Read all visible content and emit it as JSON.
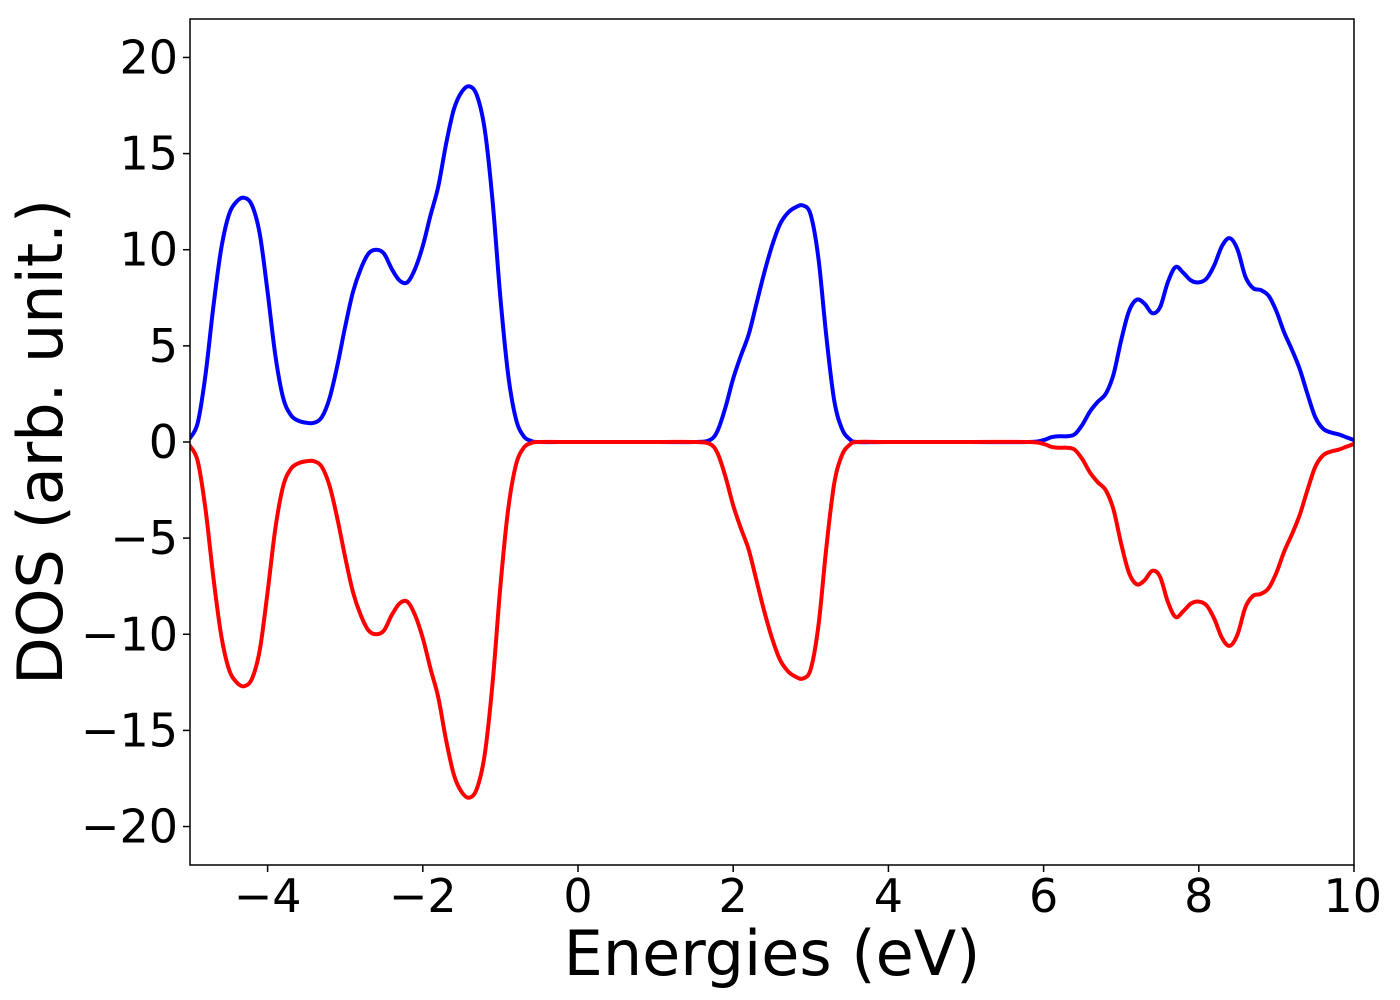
{
  "chart_data": {
    "type": "line",
    "title": "",
    "xlabel": "Energies (eV)",
    "ylabel": "DOS (arb. unit.)",
    "xlim": [
      -5,
      10
    ],
    "ylim": [
      -22,
      22
    ],
    "grid": false,
    "legend": "none",
    "x_ticks": [
      {
        "value": -4,
        "label": "−4"
      },
      {
        "value": -2,
        "label": "−2"
      },
      {
        "value": 0,
        "label": "0"
      },
      {
        "value": 2,
        "label": "2"
      },
      {
        "value": 4,
        "label": "4"
      },
      {
        "value": 6,
        "label": "6"
      },
      {
        "value": 8,
        "label": "8"
      },
      {
        "value": 10,
        "label": "10"
      }
    ],
    "y_ticks": [
      {
        "value": 20,
        "label": "20"
      },
      {
        "value": 15,
        "label": "15"
      },
      {
        "value": 10,
        "label": "10"
      },
      {
        "value": 5,
        "label": "5"
      },
      {
        "value": 0,
        "label": "0"
      },
      {
        "value": -5,
        "label": "−5"
      },
      {
        "value": -10,
        "label": "−10"
      },
      {
        "value": -15,
        "label": "−15"
      },
      {
        "value": -20,
        "label": "−20"
      }
    ],
    "series": [
      {
        "color": "#0000ff",
        "points": [
          [
            -5.0,
            0.2
          ],
          [
            -4.9,
            1.0
          ],
          [
            -4.8,
            3.5
          ],
          [
            -4.7,
            7.0
          ],
          [
            -4.6,
            10.0
          ],
          [
            -4.5,
            11.8
          ],
          [
            -4.4,
            12.5
          ],
          [
            -4.3,
            12.7
          ],
          [
            -4.2,
            12.3
          ],
          [
            -4.1,
            10.8
          ],
          [
            -4.0,
            7.8
          ],
          [
            -3.9,
            4.5
          ],
          [
            -3.8,
            2.3
          ],
          [
            -3.7,
            1.4
          ],
          [
            -3.6,
            1.1
          ],
          [
            -3.5,
            1.0
          ],
          [
            -3.4,
            1.0
          ],
          [
            -3.3,
            1.3
          ],
          [
            -3.2,
            2.3
          ],
          [
            -3.1,
            4.0
          ],
          [
            -3.0,
            6.0
          ],
          [
            -2.9,
            7.8
          ],
          [
            -2.8,
            9.0
          ],
          [
            -2.7,
            9.8
          ],
          [
            -2.6,
            10.0
          ],
          [
            -2.5,
            9.8
          ],
          [
            -2.4,
            9.0
          ],
          [
            -2.3,
            8.4
          ],
          [
            -2.2,
            8.3
          ],
          [
            -2.1,
            9.0
          ],
          [
            -2.0,
            10.2
          ],
          [
            -1.9,
            11.8
          ],
          [
            -1.8,
            13.3
          ],
          [
            -1.7,
            15.5
          ],
          [
            -1.6,
            17.3
          ],
          [
            -1.5,
            18.2
          ],
          [
            -1.4,
            18.5
          ],
          [
            -1.3,
            18.0
          ],
          [
            -1.2,
            16.2
          ],
          [
            -1.1,
            12.5
          ],
          [
            -1.0,
            7.5
          ],
          [
            -0.9,
            3.5
          ],
          [
            -0.8,
            1.2
          ],
          [
            -0.7,
            0.3
          ],
          [
            -0.6,
            0.05
          ],
          [
            -0.5,
            0.0
          ],
          [
            0.0,
            0.0
          ],
          [
            1.0,
            0.0
          ],
          [
            1.5,
            0.0
          ],
          [
            1.7,
            0.1
          ],
          [
            1.8,
            0.6
          ],
          [
            1.9,
            1.8
          ],
          [
            2.0,
            3.3
          ],
          [
            2.1,
            4.5
          ],
          [
            2.2,
            5.6
          ],
          [
            2.3,
            7.2
          ],
          [
            2.4,
            8.8
          ],
          [
            2.5,
            10.2
          ],
          [
            2.6,
            11.3
          ],
          [
            2.7,
            11.9
          ],
          [
            2.8,
            12.2
          ],
          [
            2.9,
            12.3
          ],
          [
            3.0,
            11.8
          ],
          [
            3.1,
            9.5
          ],
          [
            3.2,
            5.5
          ],
          [
            3.3,
            2.2
          ],
          [
            3.4,
            0.7
          ],
          [
            3.5,
            0.15
          ],
          [
            3.6,
            0.0
          ],
          [
            4.0,
            0.0
          ],
          [
            5.0,
            0.0
          ],
          [
            5.8,
            0.0
          ],
          [
            6.0,
            0.1
          ],
          [
            6.1,
            0.25
          ],
          [
            6.2,
            0.3
          ],
          [
            6.3,
            0.3
          ],
          [
            6.4,
            0.4
          ],
          [
            6.5,
            0.9
          ],
          [
            6.6,
            1.6
          ],
          [
            6.7,
            2.1
          ],
          [
            6.8,
            2.5
          ],
          [
            6.9,
            3.5
          ],
          [
            7.0,
            5.3
          ],
          [
            7.1,
            6.8
          ],
          [
            7.2,
            7.4
          ],
          [
            7.3,
            7.2
          ],
          [
            7.4,
            6.7
          ],
          [
            7.5,
            7.0
          ],
          [
            7.6,
            8.3
          ],
          [
            7.7,
            9.1
          ],
          [
            7.8,
            8.8
          ],
          [
            7.9,
            8.4
          ],
          [
            8.0,
            8.3
          ],
          [
            8.1,
            8.5
          ],
          [
            8.2,
            9.2
          ],
          [
            8.3,
            10.2
          ],
          [
            8.4,
            10.6
          ],
          [
            8.5,
            10.0
          ],
          [
            8.6,
            8.6
          ],
          [
            8.7,
            8.0
          ],
          [
            8.8,
            7.9
          ],
          [
            8.9,
            7.6
          ],
          [
            9.0,
            6.8
          ],
          [
            9.1,
            5.7
          ],
          [
            9.2,
            4.8
          ],
          [
            9.3,
            3.8
          ],
          [
            9.4,
            2.5
          ],
          [
            9.5,
            1.3
          ],
          [
            9.6,
            0.7
          ],
          [
            9.7,
            0.5
          ],
          [
            9.8,
            0.4
          ],
          [
            9.9,
            0.25
          ],
          [
            10.0,
            0.1
          ]
        ]
      },
      {
        "color": "#ff0000",
        "points": [
          [
            -5.0,
            -0.2
          ],
          [
            -4.9,
            -1.0
          ],
          [
            -4.8,
            -3.5
          ],
          [
            -4.7,
            -7.0
          ],
          [
            -4.6,
            -10.0
          ],
          [
            -4.5,
            -11.8
          ],
          [
            -4.4,
            -12.5
          ],
          [
            -4.3,
            -12.7
          ],
          [
            -4.2,
            -12.3
          ],
          [
            -4.1,
            -10.8
          ],
          [
            -4.0,
            -7.8
          ],
          [
            -3.9,
            -4.5
          ],
          [
            -3.8,
            -2.3
          ],
          [
            -3.7,
            -1.4
          ],
          [
            -3.6,
            -1.1
          ],
          [
            -3.5,
            -1.0
          ],
          [
            -3.4,
            -1.0
          ],
          [
            -3.3,
            -1.3
          ],
          [
            -3.2,
            -2.3
          ],
          [
            -3.1,
            -4.0
          ],
          [
            -3.0,
            -6.0
          ],
          [
            -2.9,
            -7.8
          ],
          [
            -2.8,
            -9.0
          ],
          [
            -2.7,
            -9.8
          ],
          [
            -2.6,
            -10.0
          ],
          [
            -2.5,
            -9.8
          ],
          [
            -2.4,
            -9.0
          ],
          [
            -2.3,
            -8.4
          ],
          [
            -2.2,
            -8.3
          ],
          [
            -2.1,
            -9.0
          ],
          [
            -2.0,
            -10.2
          ],
          [
            -1.9,
            -11.8
          ],
          [
            -1.8,
            -13.3
          ],
          [
            -1.7,
            -15.5
          ],
          [
            -1.6,
            -17.3
          ],
          [
            -1.5,
            -18.2
          ],
          [
            -1.4,
            -18.5
          ],
          [
            -1.3,
            -18.0
          ],
          [
            -1.2,
            -16.2
          ],
          [
            -1.1,
            -12.5
          ],
          [
            -1.0,
            -7.5
          ],
          [
            -0.9,
            -3.5
          ],
          [
            -0.8,
            -1.2
          ],
          [
            -0.7,
            -0.3
          ],
          [
            -0.6,
            -0.05
          ],
          [
            -0.5,
            0.0
          ],
          [
            0.0,
            0.0
          ],
          [
            1.0,
            0.0
          ],
          [
            1.5,
            0.0
          ],
          [
            1.7,
            -0.1
          ],
          [
            1.8,
            -0.6
          ],
          [
            1.9,
            -1.8
          ],
          [
            2.0,
            -3.3
          ],
          [
            2.1,
            -4.5
          ],
          [
            2.2,
            -5.6
          ],
          [
            2.3,
            -7.2
          ],
          [
            2.4,
            -8.8
          ],
          [
            2.5,
            -10.2
          ],
          [
            2.6,
            -11.3
          ],
          [
            2.7,
            -11.9
          ],
          [
            2.8,
            -12.2
          ],
          [
            2.9,
            -12.3
          ],
          [
            3.0,
            -11.8
          ],
          [
            3.1,
            -9.5
          ],
          [
            3.2,
            -5.5
          ],
          [
            3.3,
            -2.2
          ],
          [
            3.4,
            -0.7
          ],
          [
            3.5,
            -0.15
          ],
          [
            3.6,
            0.0
          ],
          [
            4.0,
            0.0
          ],
          [
            5.0,
            0.0
          ],
          [
            5.8,
            0.0
          ],
          [
            6.0,
            -0.1
          ],
          [
            6.1,
            -0.25
          ],
          [
            6.2,
            -0.3
          ],
          [
            6.3,
            -0.3
          ],
          [
            6.4,
            -0.4
          ],
          [
            6.5,
            -0.9
          ],
          [
            6.6,
            -1.6
          ],
          [
            6.7,
            -2.1
          ],
          [
            6.8,
            -2.5
          ],
          [
            6.9,
            -3.5
          ],
          [
            7.0,
            -5.3
          ],
          [
            7.1,
            -6.8
          ],
          [
            7.2,
            -7.4
          ],
          [
            7.3,
            -7.2
          ],
          [
            7.4,
            -6.7
          ],
          [
            7.5,
            -7.0
          ],
          [
            7.6,
            -8.3
          ],
          [
            7.7,
            -9.1
          ],
          [
            7.8,
            -8.8
          ],
          [
            7.9,
            -8.4
          ],
          [
            8.0,
            -8.3
          ],
          [
            8.1,
            -8.5
          ],
          [
            8.2,
            -9.2
          ],
          [
            8.3,
            -10.2
          ],
          [
            8.4,
            -10.6
          ],
          [
            8.5,
            -10.0
          ],
          [
            8.6,
            -8.6
          ],
          [
            8.7,
            -8.0
          ],
          [
            8.8,
            -7.9
          ],
          [
            8.9,
            -7.6
          ],
          [
            9.0,
            -6.8
          ],
          [
            9.1,
            -5.7
          ],
          [
            9.2,
            -4.8
          ],
          [
            9.3,
            -3.8
          ],
          [
            9.4,
            -2.5
          ],
          [
            9.5,
            -1.3
          ],
          [
            9.6,
            -0.7
          ],
          [
            9.7,
            -0.5
          ],
          [
            9.8,
            -0.4
          ],
          [
            9.9,
            -0.25
          ],
          [
            10.0,
            -0.1
          ]
        ]
      }
    ]
  }
}
